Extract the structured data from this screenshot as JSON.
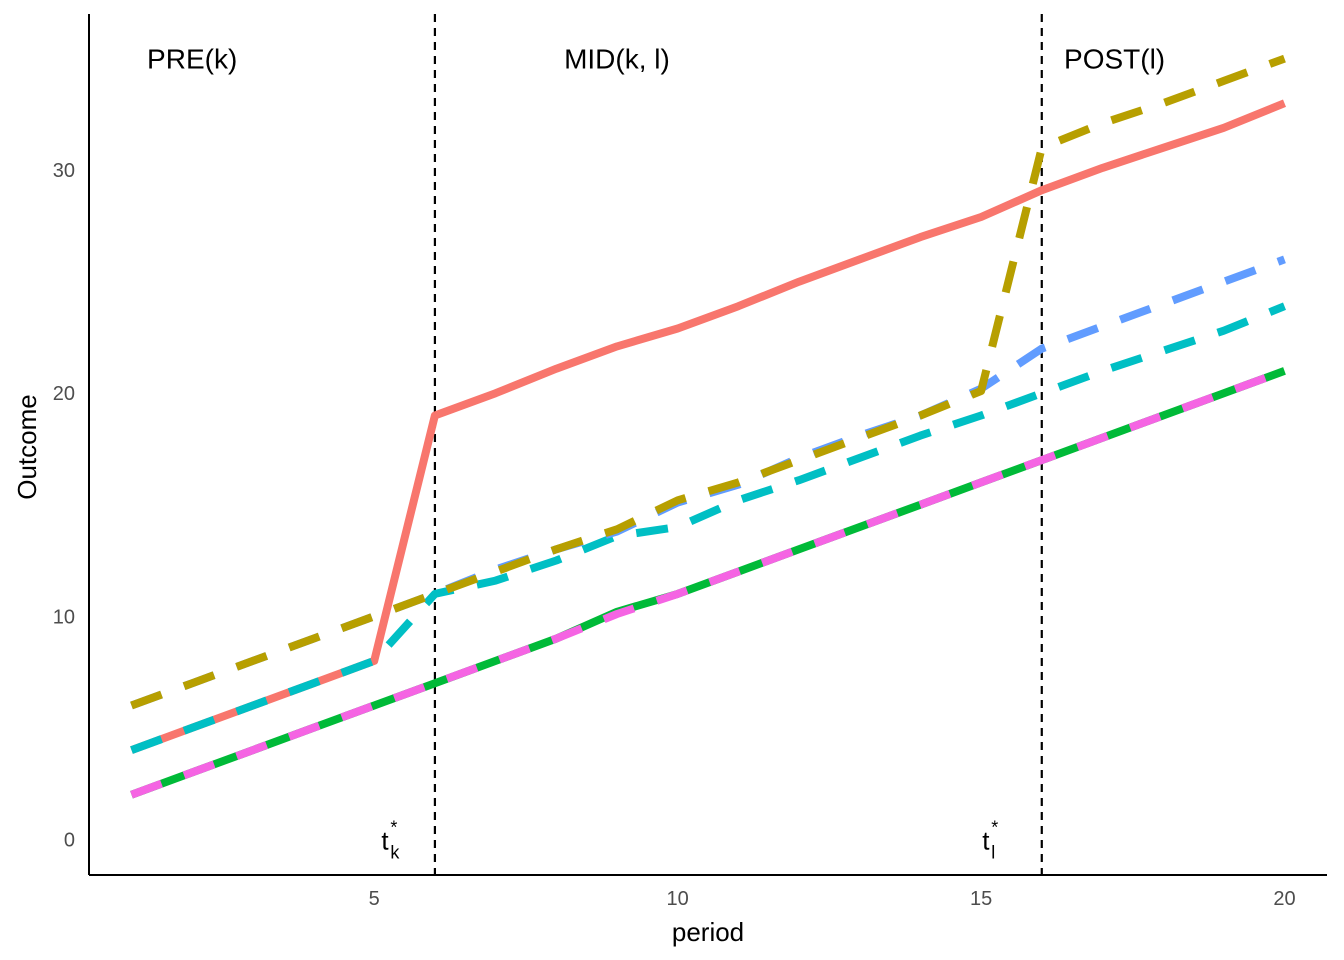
{
  "chart_data": {
    "type": "line",
    "xlabel": "period",
    "ylabel": "Outcome",
    "xlim": [
      0.3,
      20.7
    ],
    "ylim": [
      -1.6,
      37.0
    ],
    "x_ticks": [
      5,
      10,
      15,
      20
    ],
    "y_ticks": [
      0,
      10,
      20,
      30
    ],
    "grid": false,
    "legend": "none",
    "vlines": [
      6,
      16
    ],
    "region_labels": [
      {
        "text": "PRE(k)",
        "x": 2.0,
        "y": 35.0
      },
      {
        "text": "MID(k, l)",
        "x": 9.0,
        "y": 35.0
      },
      {
        "text": "POST(l)",
        "x": 17.2,
        "y": 35.0
      }
    ],
    "treatment_markers": [
      {
        "base": "t",
        "sub": "k",
        "sup": "*",
        "x": 5.25,
        "y": 0
      },
      {
        "base": "t",
        "sub": "l",
        "sup": "*",
        "x": 15.15,
        "y": 0
      }
    ],
    "x": [
      1,
      2,
      3,
      4,
      5,
      6,
      7,
      8,
      9,
      10,
      11,
      12,
      13,
      14,
      15,
      16,
      17,
      18,
      19,
      20
    ],
    "series": [
      {
        "color": "#F8766D",
        "dash": "solid",
        "values": [
          4,
          5,
          6,
          7,
          8,
          19,
          20,
          21.1,
          22.1,
          22.9,
          23.9,
          25,
          26,
          27,
          27.9,
          29.1,
          30.1,
          31,
          31.9,
          33
        ]
      },
      {
        "color": "#00BFC4",
        "dash": "dashed",
        "values": [
          4,
          5,
          6,
          7,
          8,
          11,
          11.6,
          12.5,
          13.6,
          14,
          15.2,
          16.1,
          17.1,
          18.1,
          19,
          20,
          21,
          21.9,
          22.8,
          23.9
        ]
      },
      {
        "color": "#619CFF",
        "dash": "dashed",
        "values": [
          6,
          7,
          8,
          9,
          10,
          11,
          12.1,
          13,
          13.8,
          15.1,
          15.9,
          17.1,
          18.1,
          19,
          20.2,
          22,
          23,
          24,
          25,
          26
        ]
      },
      {
        "color": "#B79F00",
        "dash": "dashed",
        "values": [
          6,
          7,
          8,
          9,
          10,
          11,
          12,
          13,
          13.9,
          15.2,
          16,
          17,
          18,
          19,
          20.1,
          31,
          32.1,
          33,
          34,
          35
        ]
      },
      {
        "color": "#00BA38",
        "dash": "solid",
        "values": [
          2,
          3,
          4,
          5,
          6,
          7,
          8,
          9,
          10.2,
          11,
          12,
          13,
          14,
          15,
          16,
          17,
          18,
          19,
          20,
          21
        ]
      },
      {
        "color": "#F564E3",
        "dash": "dashed",
        "values": [
          2,
          3,
          4,
          5,
          6,
          7,
          8,
          9,
          10.1,
          11,
          12,
          13,
          14,
          15,
          16,
          17,
          18,
          19,
          20,
          21
        ]
      }
    ]
  }
}
